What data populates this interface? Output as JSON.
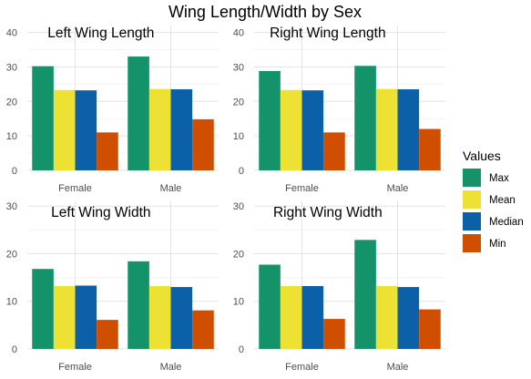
{
  "title": "Wing Length/Width by Sex",
  "legend": {
    "title": "Values",
    "items": [
      {
        "label": "Max",
        "color": "#14936b"
      },
      {
        "label": "Mean",
        "color": "#ede233"
      },
      {
        "label": "Median",
        "color": "#0b60a8"
      },
      {
        "label": "Min",
        "color": "#d04e00"
      }
    ]
  },
  "chart_data": [
    {
      "type": "bar",
      "title": "Left Wing Length",
      "categories": [
        "Female",
        "Male"
      ],
      "ylim": [
        0,
        42
      ],
      "yticks": [
        0,
        10,
        20,
        30,
        40
      ],
      "series": [
        {
          "name": "Max",
          "values": [
            30.2,
            33.0
          ]
        },
        {
          "name": "Mean",
          "values": [
            23.3,
            23.6
          ]
        },
        {
          "name": "Median",
          "values": [
            23.2,
            23.5
          ]
        },
        {
          "name": "Min",
          "values": [
            11.0,
            14.8
          ]
        }
      ]
    },
    {
      "type": "bar",
      "title": "Right Wing Length",
      "categories": [
        "Female",
        "Male"
      ],
      "ylim": [
        0,
        42
      ],
      "yticks": [
        0,
        10,
        20,
        30,
        40
      ],
      "series": [
        {
          "name": "Max",
          "values": [
            28.8,
            30.3
          ]
        },
        {
          "name": "Mean",
          "values": [
            23.3,
            23.6
          ]
        },
        {
          "name": "Median",
          "values": [
            23.2,
            23.5
          ]
        },
        {
          "name": "Min",
          "values": [
            11.0,
            12.0
          ]
        }
      ]
    },
    {
      "type": "bar",
      "title": "Left Wing Width",
      "categories": [
        "Female",
        "Male"
      ],
      "ylim": [
        0,
        31
      ],
      "yticks": [
        0,
        10,
        20,
        30
      ],
      "series": [
        {
          "name": "Max",
          "values": [
            16.8,
            18.4
          ]
        },
        {
          "name": "Mean",
          "values": [
            13.2,
            13.2
          ]
        },
        {
          "name": "Median",
          "values": [
            13.3,
            13.0
          ]
        },
        {
          "name": "Min",
          "values": [
            6.1,
            8.1
          ]
        }
      ]
    },
    {
      "type": "bar",
      "title": "Right Wing Width",
      "categories": [
        "Female",
        "Male"
      ],
      "ylim": [
        0,
        31
      ],
      "yticks": [
        0,
        10,
        20,
        30
      ],
      "series": [
        {
          "name": "Max",
          "values": [
            17.7,
            22.9
          ]
        },
        {
          "name": "Mean",
          "values": [
            13.2,
            13.2
          ]
        },
        {
          "name": "Median",
          "values": [
            13.2,
            13.0
          ]
        },
        {
          "name": "Min",
          "values": [
            6.3,
            8.3
          ]
        }
      ]
    }
  ]
}
